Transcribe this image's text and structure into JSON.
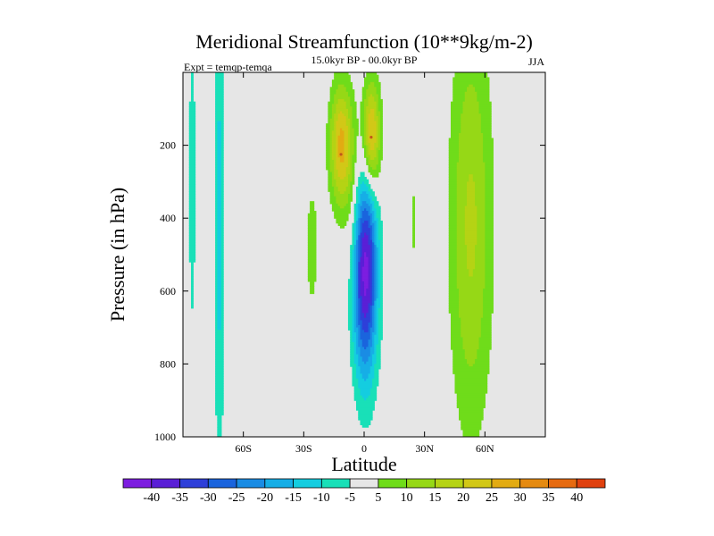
{
  "chart_data": {
    "type": "contour",
    "title": "Meridional Streamfunction (10**9kg/m-2)",
    "subtitle": "15.0kyr BP - 00.0kyr BP",
    "left_label": "Expt = temqp-temqa",
    "right_label": "JJA",
    "xlabel": "Latitude",
    "ylabel": "Pressure (in hPa)",
    "xlim": [
      -90,
      90
    ],
    "ylim": [
      1000,
      0
    ],
    "x_ticks": [
      {
        "value": -60,
        "label": "60S"
      },
      {
        "value": -30,
        "label": "30S"
      },
      {
        "value": 0,
        "label": "0"
      },
      {
        "value": 30,
        "label": "30N"
      },
      {
        "value": 60,
        "label": "60N"
      }
    ],
    "y_ticks": [
      {
        "value": 200,
        "label": "200"
      },
      {
        "value": 400,
        "label": "400"
      },
      {
        "value": 600,
        "label": "600"
      },
      {
        "value": 800,
        "label": "800"
      },
      {
        "value": 1000,
        "label": "1000"
      }
    ],
    "background_color": "#e6e6e6",
    "colorbar": {
      "levels": [
        -40,
        -35,
        -30,
        -25,
        -20,
        -15,
        -10,
        -5,
        5,
        10,
        15,
        20,
        25,
        30,
        35,
        40
      ],
      "labels": [
        "-40",
        "-35",
        "-30",
        "-25",
        "-20",
        "-15",
        "-10",
        "-5",
        "5",
        "10",
        "15",
        "20",
        "25",
        "30",
        "35",
        "40"
      ],
      "colors": [
        "#7d1de0",
        "#5a1fd6",
        "#2e3fd9",
        "#1a64dd",
        "#1a8ce4",
        "#16aee6",
        "#14cde0",
        "#19e0b8",
        "#e6e6e6",
        "#6fdc1a",
        "#96d816",
        "#b5d314",
        "#d2c817",
        "#e2ab12",
        "#e58a10",
        "#e66a10",
        "#e0410f"
      ]
    },
    "features": [
      {
        "name": "southern-polar-cell-a",
        "lat": [
          -87,
          -84
        ],
        "p": [
          0,
          700
        ],
        "level": -5
      },
      {
        "name": "southern-polar-cell-b",
        "lat": [
          -75,
          -69
        ],
        "p": [
          0,
          960
        ],
        "level": -5
      },
      {
        "name": "southern-polar-core",
        "lat": [
          -73.5,
          -71.5
        ],
        "p": [
          0,
          940
        ],
        "level": -10
      },
      {
        "name": "southern-subtropical-ridge",
        "lat": [
          -31,
          -21
        ],
        "p": [
          290,
          670
        ],
        "level": 5
      },
      {
        "name": "upper-cell-left",
        "lat": [
          -21,
          -3
        ],
        "p": [
          0,
          420
        ],
        "level": 5,
        "peak": 25
      },
      {
        "name": "upper-cell-right",
        "lat": [
          -3,
          11
        ],
        "p": [
          0,
          440
        ],
        "level": 5,
        "peak": 30
      },
      {
        "name": "hadley-cell",
        "lat": [
          -13,
          15
        ],
        "p": [
          200,
          990
        ],
        "level": -5,
        "peak": -40
      },
      {
        "name": "subtropical-ridge-north",
        "lat": [
          22,
          27
        ],
        "p": [
          290,
          520
        ],
        "level": 5
      },
      {
        "name": "northern-ferrel-cell",
        "lat": [
          34,
          72
        ],
        "p": [
          0,
          960
        ],
        "level": 5,
        "peak": 15
      }
    ]
  }
}
